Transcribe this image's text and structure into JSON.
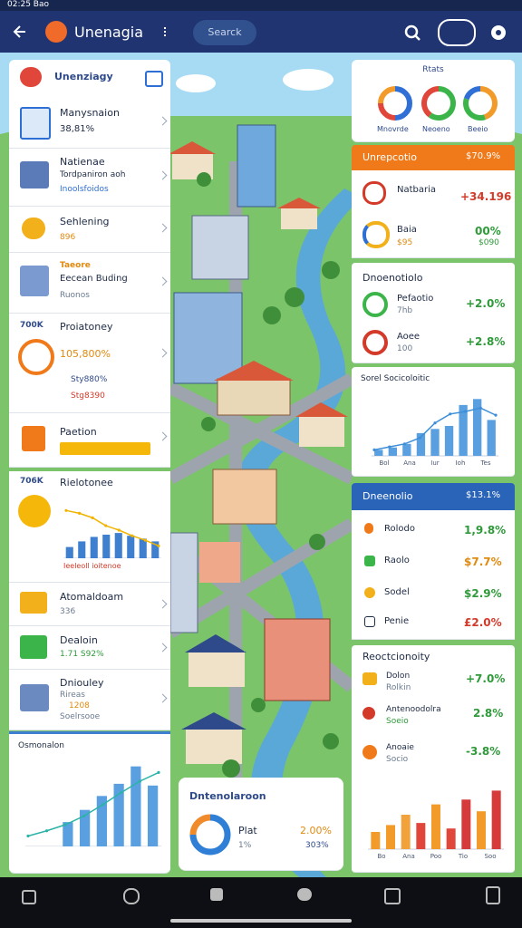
{
  "status_bar": {
    "time": "02:25 Bao"
  },
  "app_bar": {
    "title": "Unenagia",
    "search": "Searck"
  },
  "left": {
    "header": "Unenziagy",
    "items": [
      {
        "title": "Manysnaion",
        "value": "38,81%"
      },
      {
        "title": "Natienae",
        "line1": "Tordpaniron aoh",
        "line2": "Inoolsfoidos"
      },
      {
        "title": "Sehlening",
        "value": "896"
      },
      {
        "title": "Taeore",
        "line1": "Eecean Buding",
        "line2": "Ruonos"
      }
    ],
    "proiat": {
      "badge": "700K",
      "title": "Proiatoney",
      "main": "105,800%",
      "line1": "Sty880%",
      "line2": "Stg8390"
    },
    "paetion": {
      "title": "Paetion"
    },
    "riel": {
      "badge": "706K",
      "title": "Rielotonee",
      "caption": "Ieeleoll ioitenoe",
      "chart": {
        "ylim": [
          0,
          100
        ],
        "bar_color": "#3f7fd0",
        "line_color": "#f0b400",
        "bars": [
          20,
          30,
          38,
          42,
          45,
          40,
          35,
          30
        ],
        "line": [
          85,
          80,
          72,
          58,
          50,
          40,
          32,
          22
        ]
      }
    },
    "items2": [
      {
        "title": "Atomaldoam",
        "value": "336"
      },
      {
        "title": "Dealoin",
        "value": "1.71 S92%"
      },
      {
        "title": "Dniouley",
        "line1": "Rireas",
        "line2": "1208",
        "line3": "Soelrsooe"
      }
    ],
    "osmonalon": {
      "title": "Osmonalon",
      "chart": {
        "ylim": [
          0,
          100
        ],
        "bar_color": "#5aa0e0",
        "line_color": "#2bb3a8",
        "bars": [
          0,
          0,
          28,
          42,
          58,
          72,
          92,
          70
        ],
        "line": [
          12,
          18,
          25,
          35,
          48,
          62,
          75,
          85
        ]
      }
    }
  },
  "center": {
    "title": "Dntenolaroon",
    "name": "Plat",
    "sub": "1%",
    "value": "2.00%",
    "value2": "303%",
    "donut": [
      {
        "value": 75,
        "color": "#2f7fd6"
      },
      {
        "value": 25,
        "color": "#f08a2a"
      }
    ]
  },
  "right": {
    "stats": {
      "title": "Rtats",
      "labels": [
        "Mnovrde",
        "Neoeno",
        "Beeio"
      ],
      "donuts": [
        [
          {
            "value": 50,
            "color": "#2f6fd6"
          },
          {
            "value": 25,
            "color": "#e0463a"
          },
          {
            "value": 25,
            "color": "#f29b2a"
          }
        ],
        [
          {
            "value": 60,
            "color": "#3bb54a"
          },
          {
            "value": 40,
            "color": "#e0463a"
          }
        ],
        [
          {
            "value": 45,
            "color": "#f29b2a"
          },
          {
            "value": 35,
            "color": "#3bb54a"
          },
          {
            "value": 20,
            "color": "#2f6fd6"
          }
        ]
      ]
    },
    "orange": {
      "title": "Unrepcotio",
      "value": "$70.9%",
      "rows": [
        {
          "name": "Natbaria",
          "value": "+34.196"
        },
        {
          "name": "Baia",
          "sub": "$95",
          "value": "00%",
          "value2": "$090"
        }
      ]
    },
    "dnoen": {
      "title": "Dnoenotiolo",
      "rows": [
        {
          "name": "Pefaotio",
          "sub": "7hb",
          "value": "+2.0%"
        },
        {
          "name": "Aoee",
          "sub": "100",
          "value": "+2.8%"
        }
      ]
    },
    "sorel": {
      "title": "Sorel Socicoloitic",
      "chart": {
        "ylim": [
          0,
          100
        ],
        "bar_color": "#5aa0e0",
        "line_color": "#3f8fd8",
        "bars": [
          10,
          14,
          20,
          38,
          45,
          50,
          85,
          95,
          60
        ],
        "line": [
          10,
          15,
          20,
          30,
          55,
          70,
          74,
          80,
          68
        ],
        "labels": [
          "Bol",
          "Ana",
          "Iur",
          "Ioh",
          "Tes"
        ]
      }
    },
    "blue": {
      "title": "Dneenolio",
      "value": "$13.1%",
      "rows": [
        {
          "name": "Rolodo",
          "value": "1,9.8%"
        },
        {
          "name": "Raolo",
          "value": "$7.7%"
        },
        {
          "name": "Sodel",
          "value": "$2.9%"
        },
        {
          "name": "Penie",
          "value": "£2.0%"
        }
      ]
    },
    "reoct": {
      "title": "Reoctcionoity",
      "rows": [
        {
          "name": "Dolon",
          "sub": "Rolkin",
          "value": "+7.0%"
        },
        {
          "name": "Antenoodolra",
          "sub": "Soeio",
          "value": "2.8%"
        },
        {
          "name": "Anoaie",
          "sub": "Socio",
          "value": "-3.8%"
        }
      ],
      "chart": {
        "ylim": [
          0,
          100
        ],
        "bars": [
          25,
          35,
          50,
          38,
          65,
          30,
          72,
          55,
          85
        ],
        "colors": [
          "#f29b2a",
          "#f29b2a",
          "#f2a23a",
          "#e0463a",
          "#f29b2a",
          "#e0463a",
          "#d63a3a",
          "#f29b2a",
          "#d63a3a"
        ],
        "labels": [
          "Bo",
          "Ana",
          "Poo",
          "Tio",
          "Soo"
        ]
      }
    }
  }
}
